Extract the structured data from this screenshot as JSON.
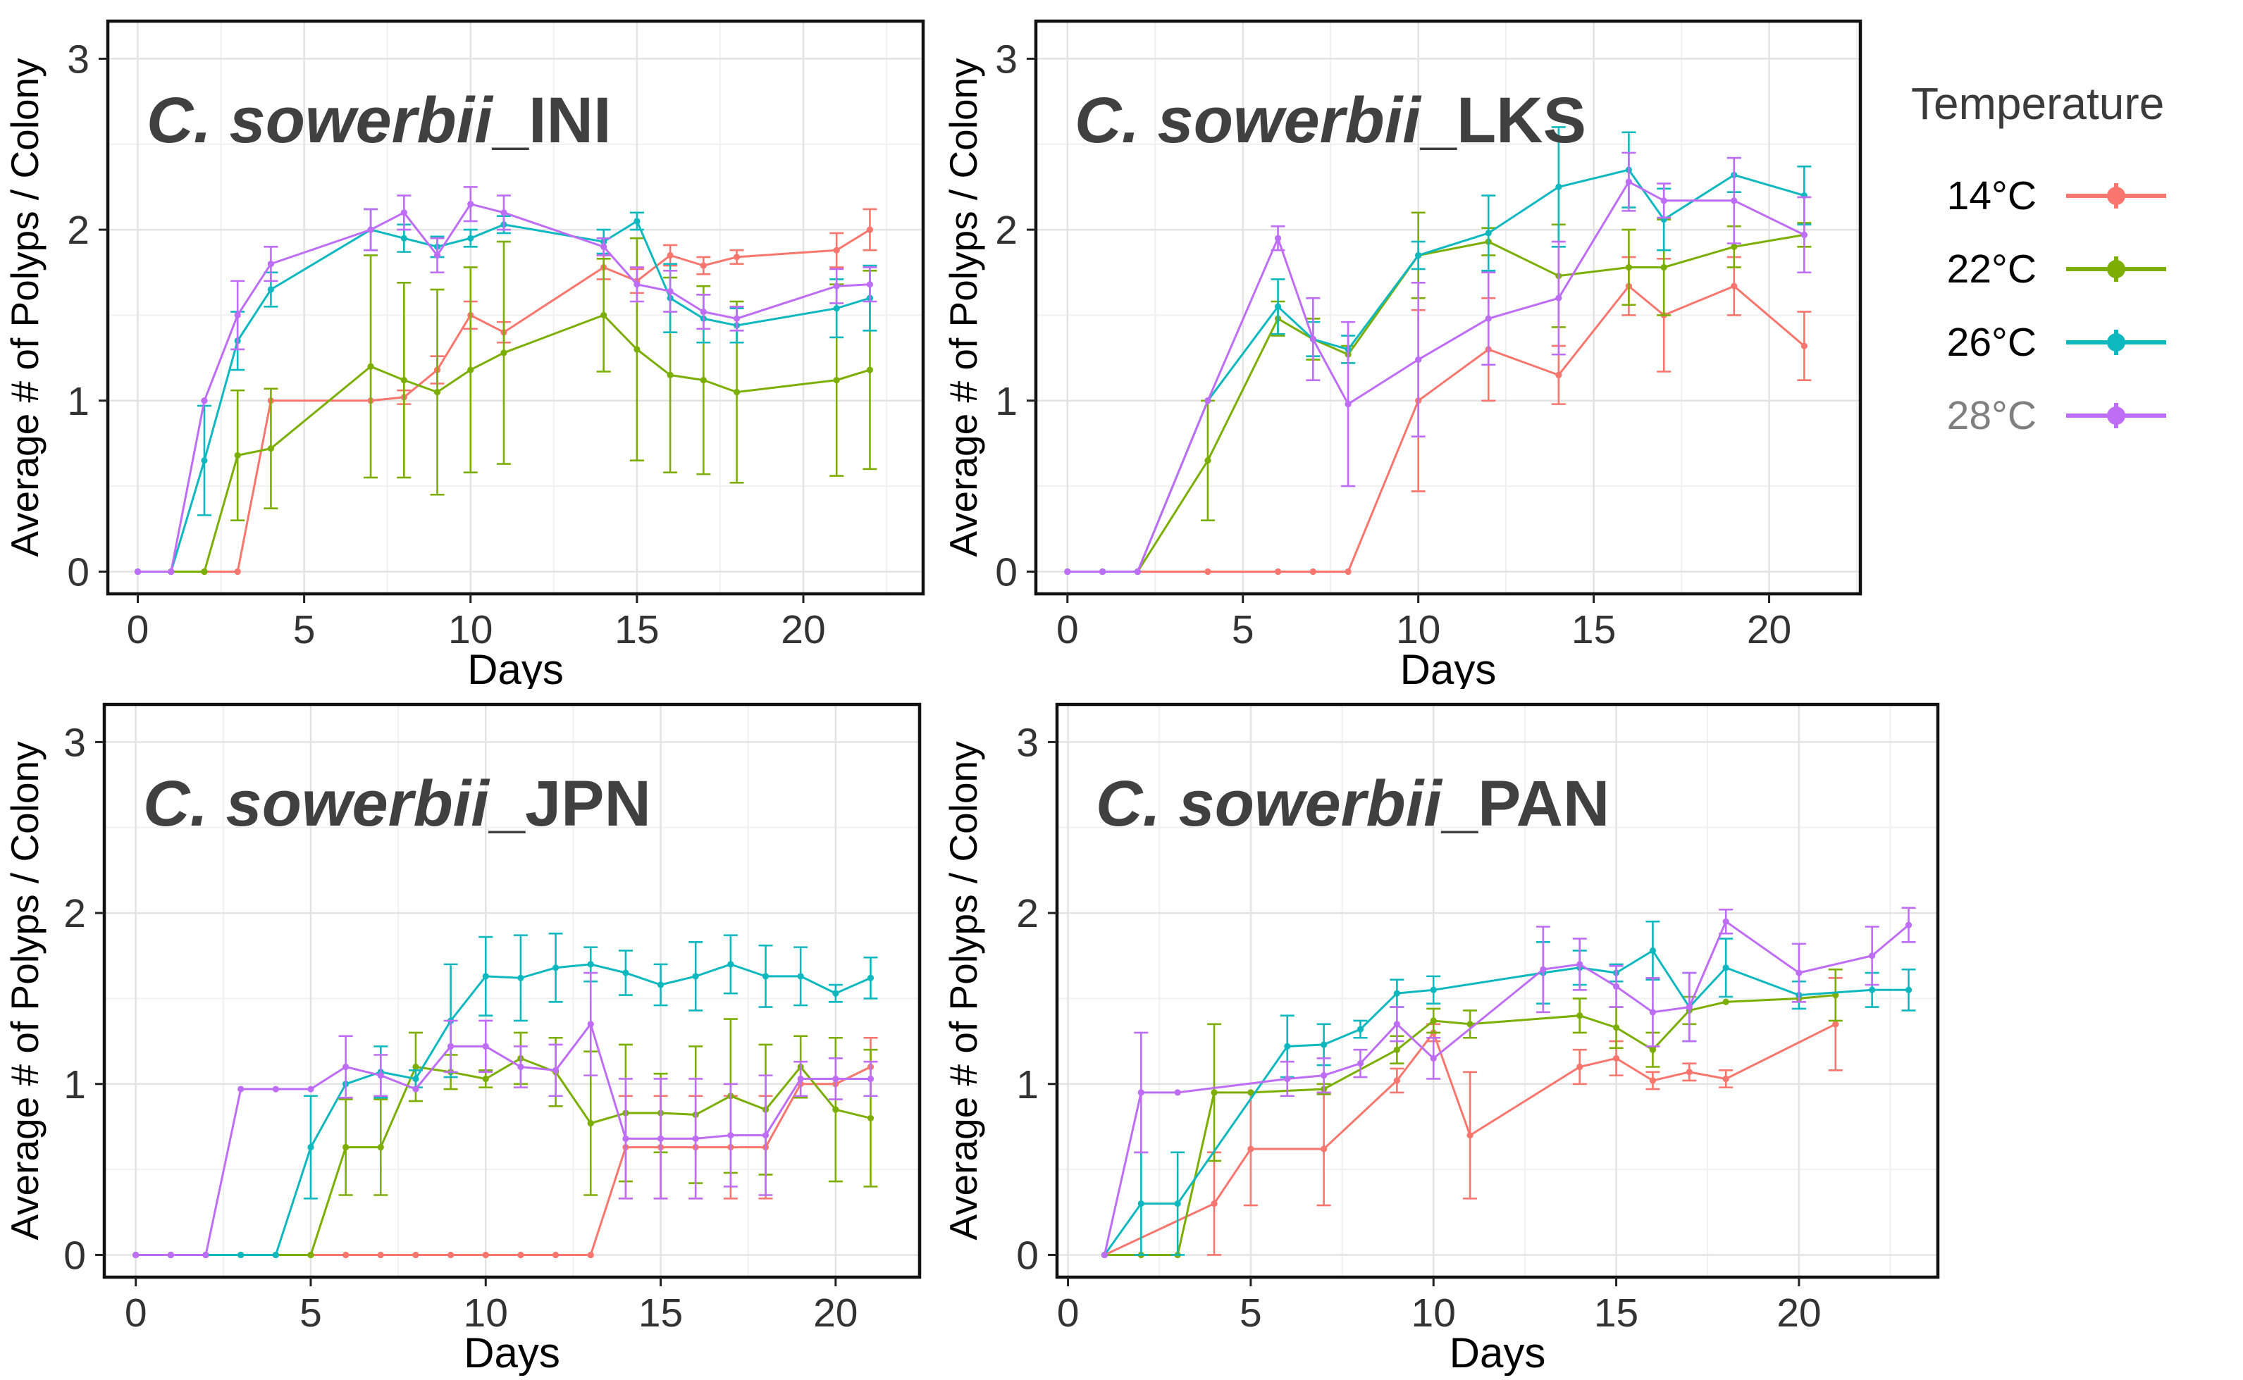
{
  "figure": {
    "description": "Average number of polyps per colony over time for four Craspedacusta sowerbii populations at four temperatures"
  },
  "legend": {
    "title": "Temperature",
    "items": [
      {
        "label": "14°C",
        "color": "#F8766D",
        "label_color": "#000000"
      },
      {
        "label": "22°C",
        "color": "#7CAE00",
        "label_color": "#000000"
      },
      {
        "label": "26°C",
        "color": "#0EB8BE",
        "label_color": "#000000"
      },
      {
        "label": "28°C",
        "color": "#BE6DF6",
        "label_color": "#7f7f7f"
      }
    ]
  },
  "axes": {
    "xlabel": "Days",
    "ylabel": "Average # of Polyps / Colony",
    "x_ticks": [
      0,
      5,
      10,
      15,
      20
    ],
    "y_ticks": [
      0,
      1,
      2,
      3
    ]
  },
  "chart_data": [
    {
      "id": "ini",
      "type": "line",
      "title_italic": "C. sowerbii",
      "title_suffix": "_INI",
      "xlim": [
        -0.9,
        23.6
      ],
      "ylim": [
        -0.13,
        3.22
      ],
      "series": [
        {
          "name": "14°C",
          "color": "#F8766D",
          "x": [
            0,
            1,
            2,
            3,
            4,
            7,
            8,
            9,
            10,
            11,
            14,
            15,
            16,
            17,
            18,
            21,
            22
          ],
          "y": [
            0,
            0,
            0,
            0,
            1.0,
            1.0,
            1.02,
            1.18,
            1.5,
            1.4,
            1.78,
            1.7,
            1.85,
            1.79,
            1.84,
            1.88,
            2.0
          ],
          "err": [
            0,
            0,
            0,
            0,
            0,
            0,
            0.04,
            0.08,
            0.08,
            0.06,
            0.07,
            0.07,
            0.06,
            0.05,
            0.04,
            0.1,
            0.12
          ]
        },
        {
          "name": "22°C",
          "color": "#7CAE00",
          "x": [
            0,
            1,
            2,
            3,
            4,
            7,
            8,
            9,
            10,
            11,
            14,
            15,
            16,
            17,
            18,
            21,
            22
          ],
          "y": [
            0,
            0,
            0,
            0.68,
            0.72,
            1.2,
            1.12,
            1.05,
            1.18,
            1.28,
            1.5,
            1.3,
            1.15,
            1.12,
            1.05,
            1.12,
            1.18
          ],
          "err": [
            0,
            0,
            0,
            0.38,
            0.35,
            0.65,
            0.57,
            0.6,
            0.6,
            0.65,
            0.33,
            0.65,
            0.57,
            0.55,
            0.53,
            0.56,
            0.58
          ]
        },
        {
          "name": "26°C",
          "color": "#0EB8BE",
          "x": [
            0,
            1,
            2,
            3,
            4,
            7,
            8,
            9,
            10,
            11,
            14,
            15,
            16,
            17,
            18,
            21,
            22
          ],
          "y": [
            0,
            0,
            0.65,
            1.35,
            1.65,
            2.0,
            1.95,
            1.9,
            1.95,
            2.03,
            1.93,
            2.05,
            1.6,
            1.48,
            1.44,
            1.54,
            1.6
          ],
          "err": [
            0,
            0,
            0.32,
            0.17,
            0.1,
            0.12,
            0.08,
            0.06,
            0.05,
            0.05,
            0.07,
            0.05,
            0.2,
            0.14,
            0.1,
            0.17,
            0.19
          ]
        },
        {
          "name": "28°C",
          "color": "#BE6DF6",
          "x": [
            0,
            1,
            2,
            3,
            4,
            7,
            8,
            9,
            10,
            11,
            14,
            15,
            16,
            17,
            18,
            21,
            22
          ],
          "y": [
            0,
            0,
            1.0,
            1.5,
            1.8,
            2.0,
            2.1,
            1.85,
            2.15,
            2.1,
            1.9,
            1.68,
            1.64,
            1.52,
            1.48,
            1.67,
            1.68
          ],
          "err": [
            0,
            0,
            0,
            0.2,
            0.1,
            0.12,
            0.1,
            0.1,
            0.1,
            0.1,
            0.05,
            0.1,
            0.12,
            0.1,
            0.07,
            0.1,
            0.1
          ]
        }
      ]
    },
    {
      "id": "lks",
      "type": "line",
      "title_italic": "C. sowerbii",
      "title_suffix": "_LKS",
      "xlim": [
        -0.9,
        22.6
      ],
      "ylim": [
        -0.13,
        3.22
      ],
      "series": [
        {
          "name": "14°C",
          "color": "#F8766D",
          "x": [
            0,
            1,
            2,
            4,
            6,
            7,
            8,
            10,
            12,
            14,
            16,
            17,
            19,
            21
          ],
          "y": [
            0,
            0,
            0,
            0,
            0,
            0,
            0,
            1.0,
            1.3,
            1.15,
            1.67,
            1.5,
            1.67,
            1.32
          ],
          "err": [
            0,
            0,
            0,
            0,
            0,
            0,
            0,
            0.53,
            0.3,
            0.17,
            0.17,
            0.33,
            0.17,
            0.2
          ]
        },
        {
          "name": "22°C",
          "color": "#7CAE00",
          "x": [
            0,
            1,
            2,
            4,
            6,
            7,
            8,
            10,
            12,
            14,
            16,
            17,
            19,
            21
          ],
          "y": [
            0,
            0,
            0,
            0.65,
            1.48,
            1.36,
            1.27,
            1.85,
            1.93,
            1.73,
            1.78,
            1.78,
            1.9,
            1.97
          ],
          "err": [
            0,
            0,
            0,
            0.35,
            0.1,
            0.12,
            0.05,
            0.25,
            0.08,
            0.3,
            0.22,
            0.28,
            0.12,
            0.07
          ]
        },
        {
          "name": "26°C",
          "color": "#0EB8BE",
          "x": [
            0,
            1,
            2,
            4,
            6,
            7,
            8,
            10,
            12,
            14,
            16,
            17,
            19,
            21
          ],
          "y": [
            0,
            0,
            0,
            1.0,
            1.55,
            1.36,
            1.3,
            1.85,
            1.98,
            2.25,
            2.35,
            2.06,
            2.32,
            2.2
          ],
          "err": [
            0,
            0,
            0,
            0,
            0.16,
            0.1,
            0.08,
            0.08,
            0.22,
            0.35,
            0.22,
            0.18,
            0.1,
            0.17
          ]
        },
        {
          "name": "28°C",
          "color": "#BE6DF6",
          "x": [
            0,
            1,
            2,
            4,
            6,
            7,
            8,
            10,
            12,
            14,
            16,
            17,
            19,
            21
          ],
          "y": [
            0,
            0,
            0,
            1.0,
            1.95,
            1.36,
            0.98,
            1.24,
            1.48,
            1.6,
            2.28,
            2.17,
            2.17,
            1.97
          ],
          "err": [
            0,
            0,
            0,
            0,
            0.07,
            0.24,
            0.48,
            0.45,
            0.27,
            0.33,
            0.17,
            0.1,
            0.25,
            0.22
          ]
        }
      ]
    },
    {
      "id": "jpn",
      "type": "line",
      "title_italic": "C. sowerbii",
      "title_suffix": "_JPN",
      "xlim": [
        -0.9,
        22.4
      ],
      "ylim": [
        -0.13,
        3.22
      ],
      "series": [
        {
          "name": "14°C",
          "color": "#F8766D",
          "x": [
            0,
            1,
            2,
            3,
            4,
            5,
            6,
            7,
            8,
            9,
            10,
            11,
            12,
            13,
            14,
            15,
            16,
            17,
            18,
            19,
            20,
            21
          ],
          "y": [
            0,
            0,
            0,
            0,
            0,
            0,
            0,
            0,
            0,
            0,
            0,
            0,
            0,
            0,
            0.63,
            0.63,
            0.63,
            0.63,
            0.63,
            1.0,
            1.0,
            1.1
          ],
          "err": [
            0,
            0,
            0,
            0,
            0,
            0,
            0,
            0,
            0,
            0,
            0,
            0,
            0,
            0,
            0.3,
            0.3,
            0.3,
            0.3,
            0.3,
            0,
            0,
            0.17
          ]
        },
        {
          "name": "22°C",
          "color": "#7CAE00",
          "x": [
            0,
            1,
            2,
            3,
            4,
            5,
            6,
            7,
            8,
            9,
            10,
            11,
            12,
            13,
            14,
            15,
            16,
            17,
            18,
            19,
            20,
            21
          ],
          "y": [
            0,
            0,
            0,
            0,
            0,
            0,
            0.63,
            0.63,
            1.1,
            1.07,
            1.03,
            1.15,
            1.07,
            0.77,
            0.83,
            0.83,
            0.82,
            0.93,
            0.85,
            1.1,
            0.85,
            0.8
          ],
          "err": [
            0,
            0,
            0,
            0,
            0,
            0,
            0.28,
            0.28,
            0.2,
            0.1,
            0.05,
            0.15,
            0.2,
            0.42,
            0.4,
            0.23,
            0.4,
            0.45,
            0.38,
            0.18,
            0.42,
            0.4
          ]
        },
        {
          "name": "26°C",
          "color": "#0EB8BE",
          "x": [
            0,
            1,
            2,
            3,
            4,
            5,
            6,
            7,
            8,
            9,
            10,
            11,
            12,
            13,
            14,
            15,
            16,
            17,
            18,
            19,
            20,
            21
          ],
          "y": [
            0,
            0,
            0,
            0,
            0,
            0.63,
            1.0,
            1.07,
            1.03,
            1.37,
            1.63,
            1.62,
            1.68,
            1.7,
            1.65,
            1.58,
            1.63,
            1.7,
            1.63,
            1.63,
            1.53,
            1.62
          ],
          "err": [
            0,
            0,
            0,
            0,
            0,
            0.3,
            0,
            0.15,
            0.05,
            0.33,
            0.23,
            0.25,
            0.2,
            0.1,
            0.13,
            0.12,
            0.2,
            0.17,
            0.18,
            0.17,
            0.05,
            0.12
          ]
        },
        {
          "name": "28°C",
          "color": "#BE6DF6",
          "x": [
            0,
            1,
            2,
            3,
            4,
            5,
            6,
            7,
            8,
            9,
            10,
            11,
            12,
            13,
            14,
            15,
            16,
            17,
            18,
            19,
            20,
            21
          ],
          "y": [
            0,
            0,
            0,
            0.97,
            0.97,
            0.97,
            1.1,
            1.05,
            0.97,
            1.22,
            1.22,
            1.1,
            1.08,
            1.35,
            0.68,
            0.68,
            0.68,
            0.7,
            0.7,
            1.03,
            1.03,
            1.03
          ],
          "err": [
            0,
            0,
            0,
            0,
            0,
            0,
            0.18,
            0.12,
            0,
            0.15,
            0.15,
            0.12,
            0.15,
            0.3,
            0.35,
            0.35,
            0.35,
            0.3,
            0.35,
            0.1,
            0.12,
            0.1
          ]
        }
      ]
    },
    {
      "id": "pan",
      "type": "line",
      "title_italic": "C. sowerbii",
      "title_suffix": "_PAN",
      "xlim": [
        -0.3,
        23.8
      ],
      "ylim": [
        -0.13,
        3.22
      ],
      "series": [
        {
          "name": "14°C",
          "color": "#F8766D",
          "x": [
            1,
            4,
            5,
            7,
            9,
            10,
            11,
            14,
            15,
            16,
            17,
            18,
            21
          ],
          "y": [
            0,
            0.3,
            0.62,
            0.62,
            1.02,
            1.3,
            0.7,
            1.1,
            1.15,
            1.02,
            1.07,
            1.03,
            1.35
          ],
          "err": [
            0,
            0.3,
            0.33,
            0.33,
            0.07,
            0.05,
            0.37,
            0.1,
            0.1,
            0.05,
            0.05,
            0.05,
            0.27
          ]
        },
        {
          "name": "22°C",
          "color": "#7CAE00",
          "x": [
            1,
            2,
            3,
            4,
            5,
            7,
            9,
            10,
            11,
            14,
            15,
            16,
            17,
            18,
            20,
            21
          ],
          "y": [
            0,
            0,
            0,
            0.95,
            0.95,
            0.97,
            1.2,
            1.37,
            1.35,
            1.4,
            1.33,
            1.2,
            1.43,
            1.48,
            1.5,
            1.52
          ],
          "err": [
            0,
            0,
            0,
            0.4,
            0,
            0.03,
            0.08,
            0.07,
            0.08,
            0.1,
            0.12,
            0.1,
            0.08,
            0,
            0,
            0.15
          ]
        },
        {
          "name": "26°C",
          "color": "#0EB8BE",
          "x": [
            1,
            2,
            3,
            6,
            7,
            8,
            9,
            10,
            13,
            14,
            15,
            16,
            17,
            18,
            20,
            22,
            23
          ],
          "y": [
            0,
            0.3,
            0.3,
            1.22,
            1.23,
            1.32,
            1.53,
            1.55,
            1.65,
            1.68,
            1.65,
            1.78,
            1.45,
            1.68,
            1.52,
            1.55,
            1.55
          ],
          "err": [
            0,
            0.3,
            0.3,
            0.18,
            0.12,
            0.05,
            0.08,
            0.08,
            0.18,
            0.1,
            0.05,
            0.17,
            0.2,
            0.17,
            0.08,
            0.1,
            0.12
          ]
        },
        {
          "name": "28°C",
          "color": "#BE6DF6",
          "x": [
            1,
            2,
            3,
            6,
            7,
            8,
            9,
            10,
            13,
            14,
            15,
            16,
            17,
            18,
            20,
            22,
            23
          ],
          "y": [
            0,
            0.95,
            0.95,
            1.03,
            1.05,
            1.12,
            1.35,
            1.15,
            1.67,
            1.7,
            1.57,
            1.42,
            1.45,
            1.95,
            1.65,
            1.75,
            1.93
          ],
          "err": [
            0,
            0.35,
            0,
            0.1,
            0.1,
            0.08,
            0.1,
            0.12,
            0.25,
            0.15,
            0.12,
            0.2,
            0.2,
            0.07,
            0.17,
            0.17,
            0.1
          ]
        }
      ]
    }
  ],
  "style": {
    "grid_major_color": "#e3e3e3",
    "grid_minor_color": "#f0f0f0",
    "border_color": "#111111",
    "tick_label_color": "#333333",
    "axis_label_color": "#000000",
    "title_color": "#404040"
  }
}
